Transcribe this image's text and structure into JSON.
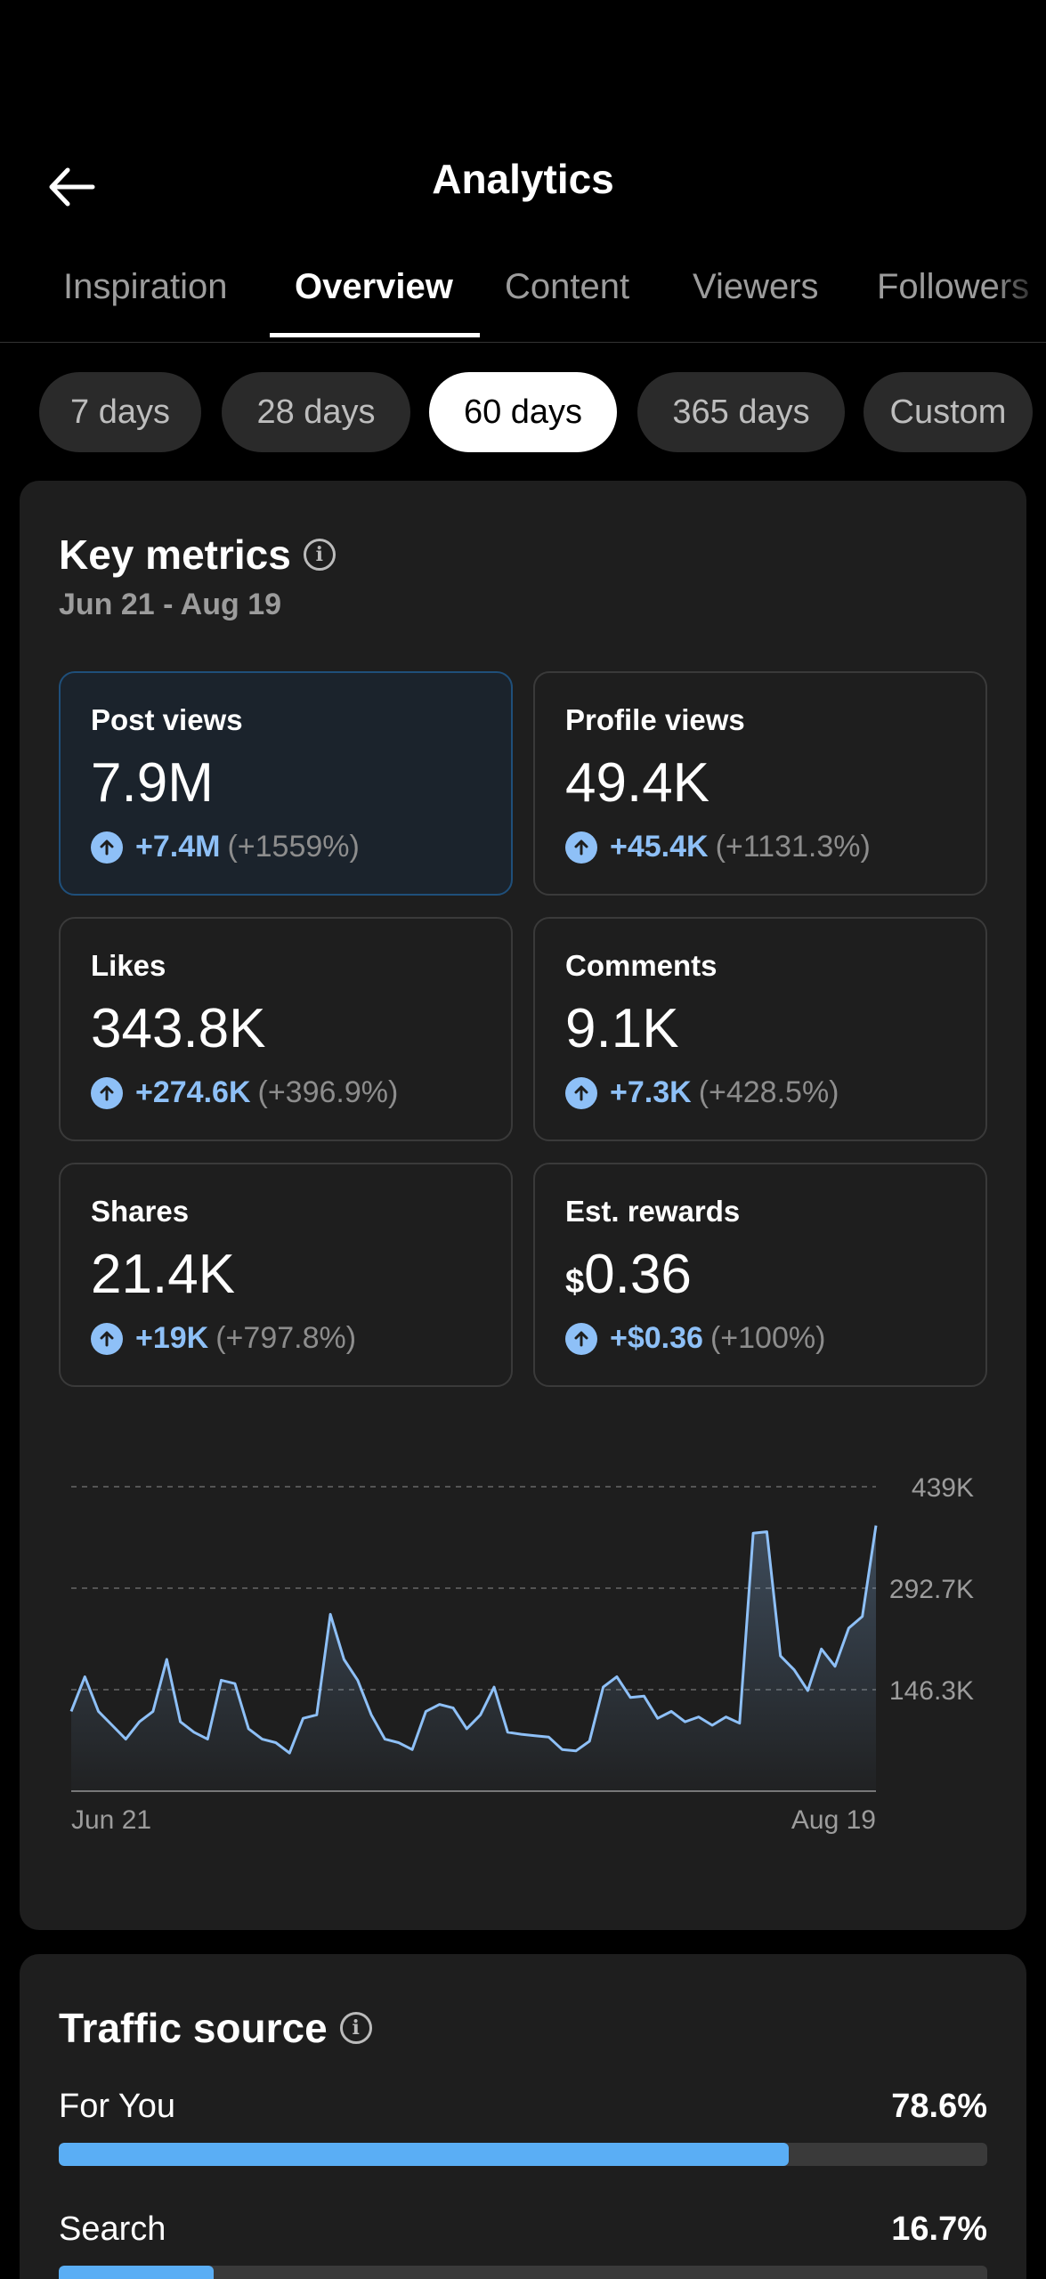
{
  "header": {
    "title": "Analytics",
    "back_icon": "arrow-left-icon"
  },
  "tabs": [
    {
      "label": "Inspiration",
      "active": false
    },
    {
      "label": "Overview",
      "active": true
    },
    {
      "label": "Content",
      "active": false
    },
    {
      "label": "Viewers",
      "active": false
    },
    {
      "label": "Followers",
      "active": false
    }
  ],
  "ranges": [
    {
      "label": "7 days",
      "active": false
    },
    {
      "label": "28 days",
      "active": false
    },
    {
      "label": "60 days",
      "active": true
    },
    {
      "label": "365 days",
      "active": false
    },
    {
      "label": "Custom",
      "active": false
    }
  ],
  "key_metrics": {
    "title": "Key metrics",
    "date_range": "Jun 21 - Aug 19",
    "metrics": [
      {
        "label": "Post views",
        "currency": "",
        "value": "7.9M",
        "change": "+7.4M",
        "pct": "(+1559%)",
        "selected": true
      },
      {
        "label": "Profile views",
        "currency": "",
        "value": "49.4K",
        "change": "+45.4K",
        "pct": "(+1131.3%)",
        "selected": false
      },
      {
        "label": "Likes",
        "currency": "",
        "value": "343.8K",
        "change": "+274.6K",
        "pct": "(+396.9%)",
        "selected": false
      },
      {
        "label": "Comments",
        "currency": "",
        "value": "9.1K",
        "change": "+7.3K",
        "pct": "(+428.5%)",
        "selected": false
      },
      {
        "label": "Shares",
        "currency": "",
        "value": "21.4K",
        "change": "+19K",
        "pct": "(+797.8%)",
        "selected": false
      },
      {
        "label": "Est. rewards",
        "currency": "$",
        "value": "0.36",
        "change": "+$0.36",
        "pct": "(+100%)",
        "selected": false
      }
    ]
  },
  "chart_data": {
    "type": "area",
    "title": "",
    "xlabel": "",
    "ylabel": "",
    "x_tick_labels": [
      "Jun 21",
      "Aug 19"
    ],
    "y_tick_labels": [
      "439K",
      "292.7K",
      "146.3K"
    ],
    "y_ticks": [
      439000,
      292700,
      146300
    ],
    "ylim": [
      0,
      439000
    ],
    "grid": true,
    "color": "#8ec0f7",
    "series": [
      {
        "values": [
          115000,
          165000,
          115000,
          95000,
          75000,
          100000,
          115000,
          190000,
          100000,
          85000,
          75000,
          160000,
          155000,
          90000,
          75000,
          70000,
          55000,
          105000,
          110000,
          255000,
          190000,
          160000,
          110000,
          75000,
          70000,
          60000,
          115000,
          125000,
          120000,
          90000,
          110000,
          150000,
          85000,
          82000,
          80000,
          78000,
          60000,
          58000,
          72000,
          150000,
          165000,
          135000,
          137000,
          105000,
          115000,
          100000,
          107000,
          95000,
          107000,
          98000,
          372000,
          374000,
          195000,
          175000,
          145000,
          205000,
          180000,
          235000,
          252000,
          383000
        ]
      }
    ]
  },
  "traffic": {
    "title": "Traffic source",
    "sources": [
      {
        "name": "For You",
        "pct_label": "78.6%",
        "fraction": 0.786
      },
      {
        "name": "Search",
        "pct_label": "16.7%",
        "fraction": 0.167
      }
    ]
  }
}
